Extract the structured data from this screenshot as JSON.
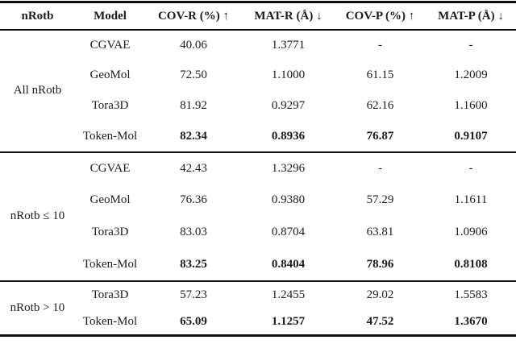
{
  "table": {
    "headers": [
      "nRotb",
      "Model",
      "COV-R (%) ↑",
      "MAT-R (Å) ↓",
      "COV-P (%) ↑",
      "MAT-P (Å) ↓"
    ],
    "groups": [
      {
        "label": "All nRotb",
        "rows": [
          {
            "model": "CGVAE",
            "values": [
              "40.06",
              "1.3771",
              "-",
              "-"
            ]
          },
          {
            "model": "GeoMol",
            "values": [
              "72.50",
              "1.1000",
              "61.15",
              "1.2009"
            ]
          },
          {
            "model": "Tora3D",
            "values": [
              "81.92",
              "0.9297",
              "62.16",
              "1.1600"
            ]
          },
          {
            "model": "Token-Mol",
            "values": [
              "82.34",
              "0.8936",
              "76.87",
              "0.9107"
            ]
          }
        ]
      },
      {
        "label": "nRotb ≤ 10",
        "rows": [
          {
            "model": "CGVAE",
            "values": [
              "42.43",
              "1.3296",
              "-",
              "-"
            ]
          },
          {
            "model": "GeoMol",
            "values": [
              "76.36",
              "0.9380",
              "57.29",
              "1.1611"
            ]
          },
          {
            "model": "Tora3D",
            "values": [
              "83.03",
              "0.8704",
              "63.81",
              "1.0906"
            ]
          },
          {
            "model": "Token-Mol",
            "values": [
              "83.25",
              "0.8404",
              "78.96",
              "0.8108"
            ]
          }
        ]
      },
      {
        "label": "nRotb > 10",
        "rows": [
          {
            "model": "Tora3D",
            "values": [
              "57.23",
              "1.2455",
              "29.02",
              "1.5583"
            ]
          },
          {
            "model": "Token-Mol",
            "values": [
              "65.09",
              "1.1257",
              "47.52",
              "1.3670"
            ]
          }
        ]
      }
    ]
  }
}
